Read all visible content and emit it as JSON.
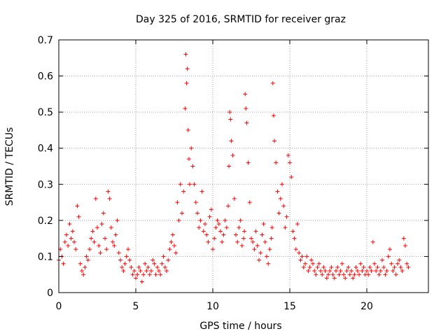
{
  "chart_data": {
    "type": "scatter",
    "title": "Day 325 of 2016, SRMTID for receiver graz",
    "xlabel": "GPS time / hours",
    "ylabel": "SRMTID / TECUs",
    "xlim": [
      0,
      24
    ],
    "ylim": [
      0,
      0.7
    ],
    "xticks": [
      0,
      5,
      10,
      15,
      20
    ],
    "yticks": [
      0,
      0.1,
      0.2,
      0.3,
      0.4,
      0.5,
      0.6,
      0.7
    ],
    "xtick_labels": [
      "0",
      "5",
      "10",
      "15",
      "20"
    ],
    "ytick_labels": [
      "0",
      "0.1",
      "0.2",
      "0.3",
      "0.4",
      "0.5",
      "0.6",
      "0.7"
    ],
    "grid": true,
    "marker": "+",
    "color": "#ff0000",
    "series": [
      {
        "name": "SRMTID",
        "x": [
          0.0,
          0.1,
          0.2,
          0.3,
          0.4,
          0.5,
          0.6,
          0.7,
          0.8,
          0.9,
          1.0,
          1.1,
          1.2,
          1.3,
          1.4,
          1.5,
          1.6,
          1.7,
          1.8,
          1.9,
          2.0,
          2.1,
          2.2,
          2.3,
          2.4,
          2.5,
          2.6,
          2.7,
          2.8,
          2.9,
          3.0,
          3.1,
          3.2,
          3.3,
          3.4,
          3.5,
          3.6,
          3.7,
          3.8,
          3.9,
          4.0,
          4.1,
          4.2,
          4.3,
          4.4,
          4.5,
          4.6,
          4.7,
          4.8,
          4.9,
          5.0,
          5.1,
          5.2,
          5.3,
          5.4,
          5.5,
          5.6,
          5.7,
          5.8,
          5.9,
          6.0,
          6.1,
          6.2,
          6.3,
          6.4,
          6.5,
          6.6,
          6.7,
          6.8,
          6.9,
          7.0,
          7.1,
          7.2,
          7.3,
          7.4,
          7.5,
          7.6,
          7.7,
          7.8,
          7.9,
          8.0,
          8.1,
          8.2,
          8.25,
          8.3,
          8.35,
          8.4,
          8.45,
          8.5,
          8.6,
          8.7,
          8.8,
          8.9,
          9.0,
          9.1,
          9.2,
          9.3,
          9.4,
          9.5,
          9.6,
          9.7,
          9.8,
          9.9,
          10.0,
          10.1,
          10.2,
          10.3,
          10.4,
          10.5,
          10.6,
          10.7,
          10.8,
          10.9,
          11.0,
          11.05,
          11.1,
          11.15,
          11.2,
          11.3,
          11.4,
          11.5,
          11.6,
          11.7,
          11.8,
          11.9,
          12.0,
          12.05,
          12.1,
          12.15,
          12.2,
          12.3,
          12.4,
          12.5,
          12.6,
          12.7,
          12.8,
          12.9,
          13.0,
          13.1,
          13.2,
          13.3,
          13.4,
          13.5,
          13.6,
          13.7,
          13.8,
          13.85,
          13.9,
          13.95,
          14.0,
          14.1,
          14.2,
          14.3,
          14.4,
          14.5,
          14.6,
          14.7,
          14.8,
          14.9,
          15.0,
          15.1,
          15.2,
          15.3,
          15.4,
          15.5,
          15.6,
          15.7,
          15.8,
          15.9,
          16.0,
          16.1,
          16.2,
          16.3,
          16.4,
          16.5,
          16.6,
          16.7,
          16.8,
          16.9,
          17.0,
          17.1,
          17.2,
          17.3,
          17.4,
          17.5,
          17.6,
          17.7,
          17.8,
          17.9,
          18.0,
          18.1,
          18.2,
          18.3,
          18.4,
          18.5,
          18.6,
          18.7,
          18.8,
          18.9,
          19.0,
          19.1,
          19.2,
          19.3,
          19.4,
          19.5,
          19.6,
          19.7,
          19.8,
          19.9,
          20.0,
          20.1,
          20.2,
          20.3,
          20.4,
          20.5,
          20.6,
          20.7,
          20.8,
          20.9,
          21.0,
          21.1,
          21.2,
          21.3,
          21.4,
          21.5,
          21.6,
          21.7,
          21.8,
          21.9,
          22.0,
          22.1,
          22.2,
          22.3,
          22.4,
          22.5,
          22.6,
          22.7
        ],
        "y": [
          0.09,
          0.12,
          0.1,
          0.08,
          0.14,
          0.16,
          0.13,
          0.19,
          0.15,
          0.17,
          0.14,
          0.12,
          0.24,
          0.21,
          0.08,
          0.06,
          0.05,
          0.07,
          0.1,
          0.09,
          0.12,
          0.15,
          0.17,
          0.14,
          0.26,
          0.18,
          0.13,
          0.11,
          0.19,
          0.22,
          0.15,
          0.12,
          0.28,
          0.26,
          0.18,
          0.14,
          0.13,
          0.16,
          0.2,
          0.11,
          0.09,
          0.07,
          0.06,
          0.08,
          0.1,
          0.12,
          0.09,
          0.07,
          0.05,
          0.06,
          0.04,
          0.05,
          0.07,
          0.06,
          0.03,
          0.05,
          0.08,
          0.06,
          0.07,
          0.05,
          0.06,
          0.09,
          0.08,
          0.05,
          0.07,
          0.06,
          0.05,
          0.08,
          0.1,
          0.07,
          0.06,
          0.09,
          0.12,
          0.14,
          0.16,
          0.13,
          0.11,
          0.25,
          0.2,
          0.3,
          0.22,
          0.28,
          0.51,
          0.66,
          0.58,
          0.62,
          0.45,
          0.37,
          0.3,
          0.4,
          0.35,
          0.3,
          0.25,
          0.22,
          0.18,
          0.2,
          0.28,
          0.17,
          0.19,
          0.16,
          0.14,
          0.21,
          0.23,
          0.12,
          0.15,
          0.18,
          0.2,
          0.19,
          0.17,
          0.14,
          0.16,
          0.2,
          0.18,
          0.24,
          0.35,
          0.5,
          0.48,
          0.42,
          0.38,
          0.26,
          0.16,
          0.14,
          0.18,
          0.2,
          0.13,
          0.15,
          0.17,
          0.55,
          0.51,
          0.47,
          0.36,
          0.25,
          0.15,
          0.14,
          0.12,
          0.17,
          0.13,
          0.09,
          0.11,
          0.16,
          0.19,
          0.14,
          0.1,
          0.08,
          0.12,
          0.15,
          0.18,
          0.58,
          0.49,
          0.42,
          0.36,
          0.28,
          0.22,
          0.26,
          0.3,
          0.24,
          0.18,
          0.21,
          0.38,
          0.36,
          0.32,
          0.17,
          0.15,
          0.12,
          0.19,
          0.11,
          0.09,
          0.1,
          0.07,
          0.08,
          0.1,
          0.06,
          0.07,
          0.09,
          0.08,
          0.06,
          0.05,
          0.07,
          0.08,
          0.06,
          0.05,
          0.07,
          0.06,
          0.04,
          0.05,
          0.06,
          0.07,
          0.05,
          0.04,
          0.06,
          0.07,
          0.05,
          0.06,
          0.08,
          0.05,
          0.04,
          0.06,
          0.07,
          0.05,
          0.06,
          0.04,
          0.05,
          0.07,
          0.06,
          0.05,
          0.08,
          0.06,
          0.07,
          0.05,
          0.06,
          0.05,
          0.07,
          0.06,
          0.14,
          0.08,
          0.06,
          0.07,
          0.05,
          0.06,
          0.09,
          0.07,
          0.05,
          0.06,
          0.1,
          0.12,
          0.08,
          0.06,
          0.07,
          0.05,
          0.08,
          0.09,
          0.07,
          0.06,
          0.15,
          0.13,
          0.08,
          0.07
        ]
      }
    ]
  }
}
